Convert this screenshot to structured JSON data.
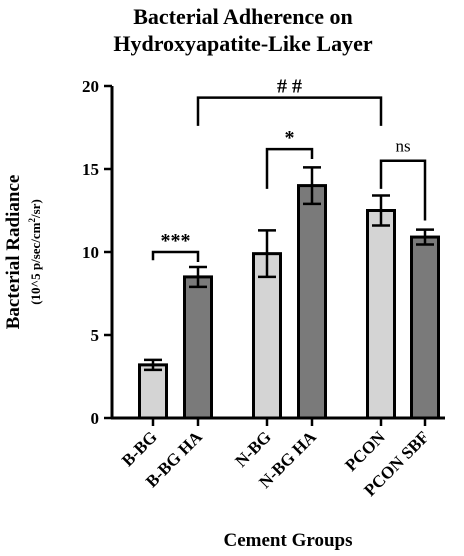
{
  "chart_data": {
    "type": "bar",
    "title_line1": "Bacterial Adherence on",
    "title_line2": "Hydroxyapatite-Like Layer",
    "ylabel_main": "Bacterial Radiance",
    "ylabel_sub_prefix": "(10^5 p/sec/cm",
    "ylabel_sub_sup": "2",
    "ylabel_sub_suffix": "/sr)",
    "xlabel": "Cement Groups",
    "ylim": [
      0,
      20
    ],
    "yticks": [
      "0",
      "5",
      "10",
      "15",
      "20"
    ],
    "categories": [
      "B-BG",
      "B-BG HA",
      "N-BG",
      "N-BG HA",
      "PCON",
      "PCON SBF"
    ],
    "values": [
      3.2,
      8.5,
      9.9,
      14.0,
      12.5,
      10.9
    ],
    "errors": [
      0.3,
      0.6,
      1.4,
      1.1,
      0.9,
      0.45
    ],
    "bar_colors": [
      "#d4d4d4",
      "#7a7a7a",
      "#d4d4d4",
      "#7a7a7a",
      "#d4d4d4",
      "#7a7a7a"
    ],
    "significance": [
      {
        "label": "***",
        "from": 0,
        "to": 1,
        "y": 10.0,
        "drop_to": [
          9.5,
          9.4
        ]
      },
      {
        "label": "*",
        "from": 2,
        "to": 3,
        "y": 16.2,
        "drop_to": [
          13.8,
          15.6
        ]
      },
      {
        "label": "ns",
        "from": 4,
        "to": 5,
        "y": 15.5,
        "drop_to": [
          13.8,
          11.9
        ]
      },
      {
        "label": "# #",
        "from": 1,
        "to": 4,
        "y": 19.3,
        "drop_to": [
          17.6,
          17.6
        ]
      }
    ]
  }
}
